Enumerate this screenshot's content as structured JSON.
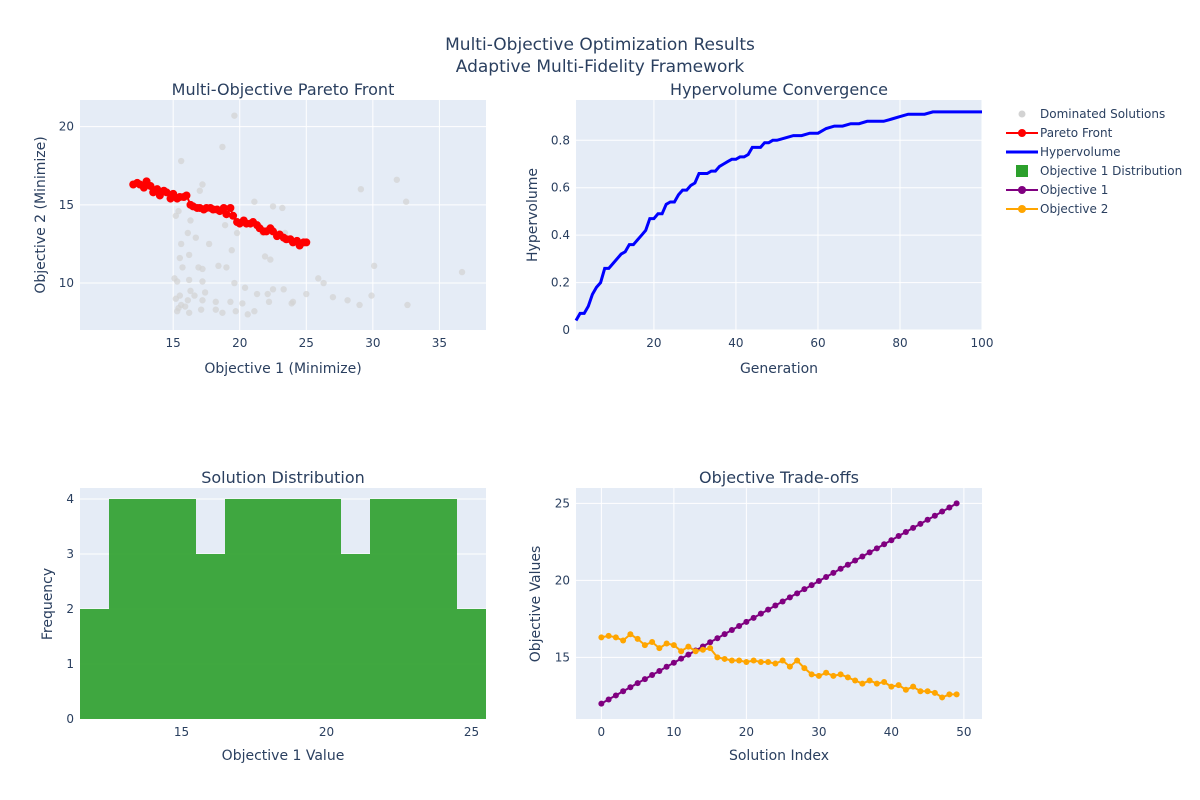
{
  "figure": {
    "title_line1": "Multi-Objective Optimization Results",
    "title_line2": "Adaptive Multi-Fidelity Framework",
    "colors": {
      "plot_bg": "#e5ecf6",
      "grid": "#ffffff",
      "text": "#2a3f5f",
      "dominated": "#d3d3d3",
      "pareto": "#ff0000",
      "hypervolume": "#0000ff",
      "histogram": "#2ca02c",
      "objective1": "#800080",
      "objective2": "#ffa500"
    }
  },
  "legend": {
    "items": [
      {
        "label": "Dominated Solutions",
        "kind": "marker",
        "color": "#d3d3d3"
      },
      {
        "label": "Pareto Front",
        "kind": "line-marker",
        "color": "#ff0000"
      },
      {
        "label": "Hypervolume",
        "kind": "line",
        "color": "#0000ff"
      },
      {
        "label": "Objective 1 Distribution",
        "kind": "bar",
        "color": "#2ca02c"
      },
      {
        "label": "Objective 1",
        "kind": "line-marker",
        "color": "#800080"
      },
      {
        "label": "Objective 2",
        "kind": "line-marker",
        "color": "#ffa500"
      }
    ]
  },
  "chart_data": [
    {
      "id": "pareto",
      "type": "scatter",
      "title": "Multi-Objective Pareto Front",
      "xlabel": "Objective 1 (Minimize)",
      "ylabel": "Objective 2 (Minimize)",
      "xlim": [
        8.0,
        38.5
      ],
      "ylim": [
        7.0,
        21.7
      ],
      "xticks": [
        15,
        20,
        25,
        30,
        35
      ],
      "yticks": [
        10,
        15,
        20
      ],
      "series": [
        {
          "name": "Dominated Solutions",
          "mode": "markers",
          "points": [
            [
              19.6,
              20.7
            ],
            [
              18.7,
              18.7
            ],
            [
              15.6,
              17.8
            ],
            [
              17.2,
              16.3
            ],
            [
              17.0,
              15.9
            ],
            [
              21.1,
              15.2
            ],
            [
              22.5,
              14.9
            ],
            [
              29.1,
              16.0
            ],
            [
              31.8,
              16.6
            ],
            [
              32.5,
              15.2
            ],
            [
              23.2,
              14.8
            ],
            [
              15.4,
              14.6
            ],
            [
              15.2,
              14.3
            ],
            [
              16.3,
              14.0
            ],
            [
              18.9,
              13.7
            ],
            [
              19.8,
              13.2
            ],
            [
              21.7,
              13.2
            ],
            [
              23.4,
              13.2
            ],
            [
              16.1,
              13.2
            ],
            [
              16.7,
              12.9
            ],
            [
              17.7,
              12.5
            ],
            [
              15.6,
              12.5
            ],
            [
              19.4,
              12.1
            ],
            [
              21.9,
              11.7
            ],
            [
              16.2,
              11.8
            ],
            [
              15.5,
              11.6
            ],
            [
              22.3,
              11.5
            ],
            [
              18.4,
              11.1
            ],
            [
              15.7,
              11.0
            ],
            [
              16.9,
              11.0
            ],
            [
              17.2,
              10.9
            ],
            [
              19.0,
              11.0
            ],
            [
              30.1,
              11.1
            ],
            [
              36.7,
              10.7
            ],
            [
              15.1,
              10.3
            ],
            [
              15.3,
              10.1
            ],
            [
              16.2,
              10.2
            ],
            [
              17.2,
              10.1
            ],
            [
              19.6,
              10.0
            ],
            [
              25.9,
              10.3
            ],
            [
              26.3,
              10.0
            ],
            [
              20.4,
              9.7
            ],
            [
              22.5,
              9.6
            ],
            [
              23.3,
              9.6
            ],
            [
              16.3,
              9.5
            ],
            [
              17.4,
              9.4
            ],
            [
              15.5,
              9.2
            ],
            [
              16.6,
              9.2
            ],
            [
              21.3,
              9.3
            ],
            [
              22.1,
              9.3
            ],
            [
              25.0,
              9.3
            ],
            [
              27.0,
              9.1
            ],
            [
              28.1,
              8.9
            ],
            [
              29.9,
              9.2
            ],
            [
              15.2,
              9.0
            ],
            [
              16.1,
              8.9
            ],
            [
              17.2,
              8.9
            ],
            [
              18.2,
              8.8
            ],
            [
              19.3,
              8.8
            ],
            [
              20.2,
              8.7
            ],
            [
              22.2,
              8.8
            ],
            [
              23.9,
              8.7
            ],
            [
              24.0,
              8.8
            ],
            [
              15.6,
              8.6
            ],
            [
              15.9,
              8.5
            ],
            [
              17.1,
              8.3
            ],
            [
              18.2,
              8.3
            ],
            [
              19.7,
              8.2
            ],
            [
              21.1,
              8.2
            ],
            [
              29.0,
              8.6
            ],
            [
              32.6,
              8.6
            ],
            [
              15.3,
              8.2
            ],
            [
              15.4,
              8.4
            ],
            [
              16.2,
              8.1
            ],
            [
              18.7,
              8.1
            ],
            [
              20.6,
              8.0
            ]
          ]
        },
        {
          "name": "Pareto Front",
          "mode": "lines+markers",
          "points": [
            [
              12.0,
              16.3
            ],
            [
              12.3,
              16.4
            ],
            [
              12.5,
              16.3
            ],
            [
              12.8,
              16.1
            ],
            [
              13.0,
              16.5
            ],
            [
              13.3,
              16.2
            ],
            [
              13.5,
              15.8
            ],
            [
              13.8,
              16.0
            ],
            [
              14.0,
              15.6
            ],
            [
              14.3,
              15.9
            ],
            [
              14.5,
              15.8
            ],
            [
              14.8,
              15.4
            ],
            [
              15.0,
              15.7
            ],
            [
              15.3,
              15.4
            ],
            [
              15.5,
              15.5
            ],
            [
              15.8,
              15.5
            ],
            [
              16.0,
              15.6
            ],
            [
              16.3,
              15.0
            ],
            [
              16.5,
              14.9
            ],
            [
              16.8,
              14.8
            ],
            [
              17.0,
              14.8
            ],
            [
              17.3,
              14.7
            ],
            [
              17.5,
              14.8
            ],
            [
              17.8,
              14.8
            ],
            [
              18.0,
              14.7
            ],
            [
              18.3,
              14.7
            ],
            [
              18.5,
              14.6
            ],
            [
              18.8,
              14.8
            ],
            [
              19.0,
              14.4
            ],
            [
              19.3,
              14.8
            ],
            [
              19.5,
              14.3
            ],
            [
              19.8,
              13.9
            ],
            [
              20.0,
              13.8
            ],
            [
              20.3,
              14.0
            ],
            [
              20.5,
              13.8
            ],
            [
              20.8,
              13.8
            ],
            [
              21.0,
              13.9
            ],
            [
              21.3,
              13.7
            ],
            [
              21.5,
              13.5
            ],
            [
              21.8,
              13.3
            ],
            [
              22.0,
              13.3
            ],
            [
              22.3,
              13.5
            ],
            [
              22.5,
              13.3
            ],
            [
              22.8,
              13.0
            ],
            [
              23.0,
              13.1
            ],
            [
              23.3,
              12.9
            ],
            [
              23.5,
              12.8
            ],
            [
              23.8,
              12.8
            ],
            [
              24.0,
              12.6
            ],
            [
              24.3,
              12.7
            ],
            [
              24.5,
              12.4
            ],
            [
              24.8,
              12.6
            ],
            [
              25.0,
              12.6
            ]
          ]
        }
      ]
    },
    {
      "id": "hypervolume",
      "type": "line",
      "title": "Hypervolume Convergence",
      "xlabel": "Generation",
      "ylabel": "Hypervolume",
      "xlim": [
        1,
        100
      ],
      "ylim": [
        0.0,
        0.97
      ],
      "xticks": [
        20,
        40,
        60,
        80,
        100
      ],
      "yticks": [
        0,
        0.2,
        0.4,
        0.6,
        0.8
      ],
      "series": [
        {
          "name": "Hypervolume",
          "x": [
            1,
            2,
            3,
            4,
            5,
            6,
            7,
            8,
            9,
            10,
            11,
            12,
            13,
            14,
            15,
            16,
            17,
            18,
            19,
            20,
            21,
            22,
            23,
            24,
            25,
            26,
            27,
            28,
            29,
            30,
            31,
            32,
            33,
            34,
            35,
            36,
            37,
            38,
            39,
            40,
            41,
            42,
            43,
            44,
            45,
            46,
            47,
            48,
            49,
            50,
            52,
            54,
            56,
            58,
            60,
            62,
            64,
            66,
            68,
            70,
            72,
            74,
            76,
            78,
            80,
            82,
            84,
            86,
            88,
            90,
            92,
            94,
            96,
            98,
            100
          ],
          "y": [
            0.04,
            0.07,
            0.07,
            0.1,
            0.15,
            0.18,
            0.2,
            0.26,
            0.26,
            0.28,
            0.3,
            0.32,
            0.33,
            0.36,
            0.36,
            0.38,
            0.4,
            0.42,
            0.47,
            0.47,
            0.49,
            0.49,
            0.53,
            0.54,
            0.54,
            0.57,
            0.59,
            0.59,
            0.61,
            0.62,
            0.66,
            0.66,
            0.66,
            0.67,
            0.67,
            0.69,
            0.7,
            0.71,
            0.72,
            0.72,
            0.73,
            0.73,
            0.74,
            0.77,
            0.77,
            0.77,
            0.79,
            0.79,
            0.8,
            0.8,
            0.81,
            0.82,
            0.82,
            0.83,
            0.83,
            0.85,
            0.86,
            0.86,
            0.87,
            0.87,
            0.88,
            0.88,
            0.88,
            0.89,
            0.9,
            0.91,
            0.91,
            0.91,
            0.92,
            0.92,
            0.92,
            0.92,
            0.92,
            0.92,
            0.92
          ]
        }
      ]
    },
    {
      "id": "histogram",
      "type": "bar",
      "title": "Solution Distribution",
      "xlabel": "Objective 1 Value",
      "ylabel": "Frequency",
      "xlim": [
        11.5,
        25.5
      ],
      "ylim": [
        0,
        4.2
      ],
      "xticks": [
        15,
        20,
        25
      ],
      "yticks": [
        0,
        1,
        2,
        3,
        4
      ],
      "series": [
        {
          "name": "Objective 1 Distribution",
          "bins": [
            {
              "start": 11.5,
              "end": 12.5,
              "count": 2
            },
            {
              "start": 12.5,
              "end": 13.5,
              "count": 4
            },
            {
              "start": 13.5,
              "end": 14.5,
              "count": 4
            },
            {
              "start": 14.5,
              "end": 15.5,
              "count": 4
            },
            {
              "start": 15.5,
              "end": 16.5,
              "count": 3
            },
            {
              "start": 16.5,
              "end": 17.5,
              "count": 4
            },
            {
              "start": 17.5,
              "end": 18.5,
              "count": 4
            },
            {
              "start": 18.5,
              "end": 19.5,
              "count": 4
            },
            {
              "start": 19.5,
              "end": 20.5,
              "count": 4
            },
            {
              "start": 20.5,
              "end": 21.5,
              "count": 3
            },
            {
              "start": 21.5,
              "end": 22.5,
              "count": 4
            },
            {
              "start": 22.5,
              "end": 23.5,
              "count": 4
            },
            {
              "start": 23.5,
              "end": 24.5,
              "count": 4
            },
            {
              "start": 24.5,
              "end": 25.5,
              "count": 2
            }
          ]
        }
      ]
    },
    {
      "id": "tradeoffs",
      "type": "line",
      "title": "Objective Trade-offs",
      "xlabel": "Solution Index",
      "ylabel": "Objective Values",
      "xlim": [
        -3.5,
        52.5
      ],
      "ylim": [
        11.0,
        26.0
      ],
      "xticks": [
        0,
        10,
        20,
        30,
        40,
        50
      ],
      "yticks": [
        15,
        20,
        25
      ],
      "series": [
        {
          "name": "Objective 1",
          "x": [
            0,
            1,
            2,
            3,
            4,
            5,
            6,
            7,
            8,
            9,
            10,
            11,
            12,
            13,
            14,
            15,
            16,
            17,
            18,
            19,
            20,
            21,
            22,
            23,
            24,
            25,
            26,
            27,
            28,
            29,
            30,
            31,
            32,
            33,
            34,
            35,
            36,
            37,
            38,
            39,
            40,
            41,
            42,
            43,
            44,
            45,
            46,
            47,
            48,
            49
          ],
          "y": [
            12.0,
            12.27,
            12.53,
            12.8,
            13.06,
            13.33,
            13.59,
            13.86,
            14.12,
            14.39,
            14.65,
            14.92,
            15.18,
            15.45,
            15.71,
            15.98,
            16.24,
            16.51,
            16.78,
            17.04,
            17.31,
            17.57,
            17.84,
            18.1,
            18.37,
            18.63,
            18.9,
            19.16,
            19.43,
            19.69,
            19.96,
            20.22,
            20.49,
            20.76,
            21.02,
            21.29,
            21.55,
            21.82,
            22.08,
            22.35,
            22.61,
            22.88,
            23.14,
            23.41,
            23.67,
            23.94,
            24.2,
            24.47,
            24.73,
            25.0
          ]
        },
        {
          "name": "Objective 2",
          "x": [
            0,
            1,
            2,
            3,
            4,
            5,
            6,
            7,
            8,
            9,
            10,
            11,
            12,
            13,
            14,
            15,
            16,
            17,
            18,
            19,
            20,
            21,
            22,
            23,
            24,
            25,
            26,
            27,
            28,
            29,
            30,
            31,
            32,
            33,
            34,
            35,
            36,
            37,
            38,
            39,
            40,
            41,
            42,
            43,
            44,
            45,
            46,
            47,
            48,
            49
          ],
          "y": [
            16.3,
            16.4,
            16.3,
            16.1,
            16.5,
            16.2,
            15.8,
            16.0,
            15.6,
            15.9,
            15.8,
            15.4,
            15.7,
            15.4,
            15.5,
            15.6,
            15.0,
            14.9,
            14.8,
            14.8,
            14.7,
            14.8,
            14.7,
            14.7,
            14.6,
            14.8,
            14.4,
            14.8,
            14.3,
            13.9,
            13.8,
            14.0,
            13.8,
            13.9,
            13.7,
            13.5,
            13.3,
            13.5,
            13.3,
            13.4,
            13.1,
            13.2,
            12.9,
            13.1,
            12.8,
            12.8,
            12.7,
            12.4,
            12.6,
            12.6
          ]
        }
      ]
    }
  ]
}
